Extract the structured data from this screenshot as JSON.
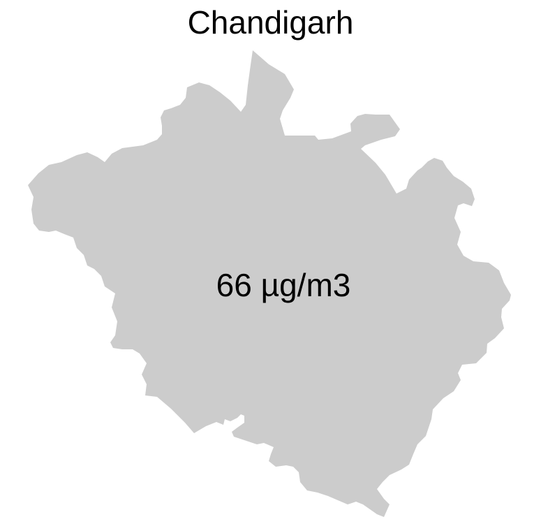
{
  "map": {
    "title": "Chandigarh",
    "value_label": "66 µg/m3",
    "region_fill": "#cccccc",
    "background": "#ffffff"
  }
}
